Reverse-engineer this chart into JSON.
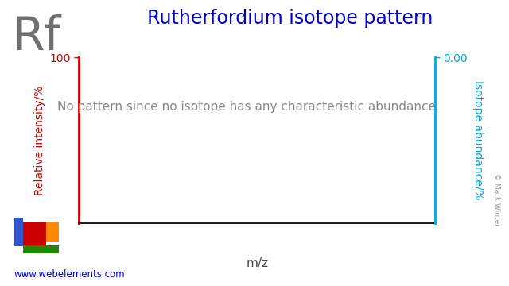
{
  "title": "Rutherfordium isotope pattern",
  "title_color": "#0000cc",
  "title_fontsize": 17,
  "element_symbol": "Rf",
  "element_symbol_color": "#707070",
  "element_symbol_fontsize": 42,
  "left_ylabel": "Relative intensity/%",
  "left_ylabel_color": "#cc0000",
  "right_ylabel": "Isotope abundance/%",
  "right_ylabel_color": "#00aadd",
  "xlabel": "m/z",
  "xlabel_color": "#444444",
  "annotation_text": "No pattern since no isotope has any characteristic abundance",
  "annotation_color": "#888888",
  "annotation_fontsize": 11,
  "ylim": [
    0,
    100
  ],
  "right_ytick_label": "0.00",
  "right_ytick_color": "#00aadd",
  "left_ytick_100": "100",
  "left_ytick_color": "#cc0000",
  "axis_color_left": "#cc0000",
  "axis_color_right": "#00aadd",
  "axis_color_bottom": "#222222",
  "background_color": "#ffffff",
  "website_text": "www.webelements.com",
  "website_color": "#0000cc",
  "copyright_text": "© Mark Winter",
  "copyright_color": "#999999",
  "pt_blue": "#3355cc",
  "pt_red": "#cc0000",
  "pt_orange": "#ff8800",
  "pt_green": "#228800"
}
